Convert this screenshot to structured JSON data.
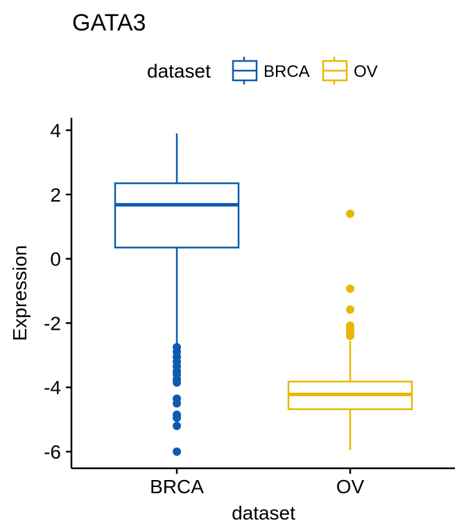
{
  "chart_data": {
    "type": "boxplot",
    "title": "GATA3",
    "xlabel": "dataset",
    "ylabel": "Expression",
    "ylim": [
      -6.5,
      4.4
    ],
    "yticks": [
      -6,
      -4,
      -2,
      0,
      2,
      4
    ],
    "ytick_labels": [
      "-6",
      "-4",
      "-2",
      "0",
      "2",
      "4"
    ],
    "categories": [
      "BRCA",
      "OV"
    ],
    "grid": false,
    "legend": {
      "title": "dataset",
      "position": "top",
      "entries": [
        "BRCA",
        "OV"
      ]
    },
    "series": [
      {
        "name": "BRCA",
        "color": "#0C5BB0",
        "whisker_low": -2.7,
        "q1": 0.35,
        "median": 1.68,
        "q3": 2.35,
        "whisker_high": 3.9,
        "outliers": [
          -2.75,
          -2.9,
          -3.05,
          -3.2,
          -3.35,
          -3.5,
          -3.6,
          -3.75,
          -3.85,
          -4.35,
          -4.5,
          -4.85,
          -4.95,
          -5.2,
          -6.0
        ]
      },
      {
        "name": "OV",
        "color": "#E7B800",
        "whisker_low": -5.95,
        "q1": -4.68,
        "median": -4.22,
        "q3": -3.82,
        "whisker_high": -2.55,
        "outliers": [
          1.4,
          -0.93,
          -1.58,
          -2.08,
          -2.18,
          -2.3,
          -2.4
        ]
      }
    ]
  }
}
